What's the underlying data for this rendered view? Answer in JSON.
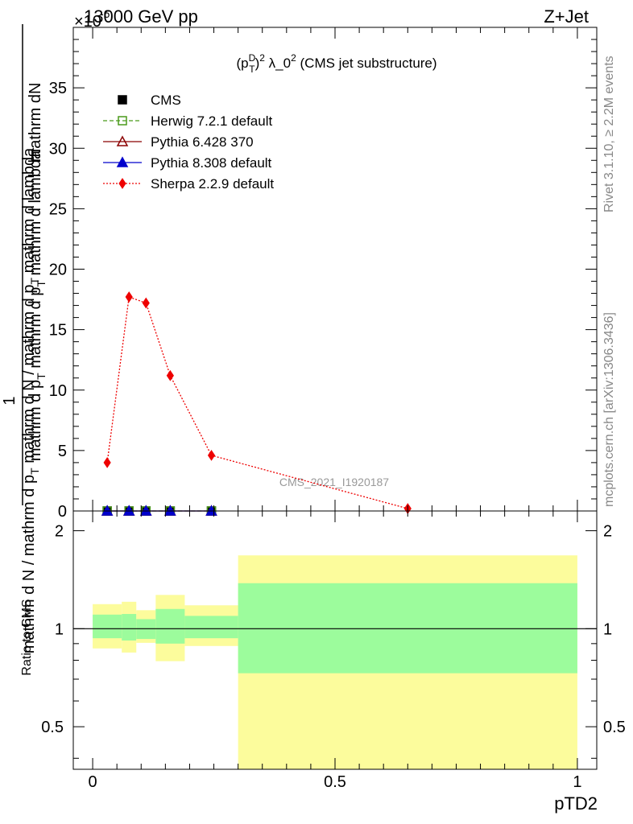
{
  "header": {
    "left": "13000 GeV pp",
    "right": "Z+Jet",
    "exponent_prefix": "×10",
    "exponent_value": "-6"
  },
  "side_labels": {
    "rivet": "Rivet 3.1.10, ≥ 2.2M events",
    "mcplots": "mcplots.cern.ch [arXiv:1306.3436]"
  },
  "plot_title": "(p_T^D)^2 λ_0^2 (CMS jet substructure)",
  "watermark": "CMS_2021_I1920187",
  "chart_data": [
    {
      "type": "line",
      "panel": "main",
      "ylabel": "1 / mathrm d N / mathrm d p_T mathrm d N / mathrm d p_T mathrm d lambda",
      "xlim": [
        -0.04,
        1.04
      ],
      "ylim": [
        0,
        40
      ],
      "yticks_major": [
        0,
        5,
        10,
        15,
        20,
        25,
        30,
        35
      ],
      "yticks_minor_step": 1,
      "legend_position": "top-left",
      "series": [
        {
          "name": "CMS",
          "style": "square-filled",
          "color": "#000000",
          "x": [
            0.03,
            0.075,
            0.11,
            0.16,
            0.245
          ],
          "y": [
            0,
            0,
            0,
            0,
            0
          ]
        },
        {
          "name": "Herwig 7.2.1 default",
          "style": "open-square-dashed",
          "color": "#4a9a1a",
          "x": [
            0.03,
            0.075,
            0.11,
            0.16,
            0.245
          ],
          "y": [
            0,
            0,
            0,
            0,
            0
          ]
        },
        {
          "name": "Pythia 6.428 370",
          "style": "open-triangle-solid",
          "color": "#8b0000",
          "x": [
            0.03,
            0.075,
            0.11,
            0.16,
            0.245
          ],
          "y": [
            0,
            0,
            0,
            0,
            0
          ]
        },
        {
          "name": "Pythia 8.308 default",
          "style": "filled-triangle-solid",
          "color": "#0000cc",
          "x": [
            0.03,
            0.075,
            0.11,
            0.16,
            0.245
          ],
          "y": [
            0,
            0,
            0,
            0,
            0
          ]
        },
        {
          "name": "Sherpa 2.2.9 default",
          "style": "filled-diamond-dotted",
          "color": "#ee0000",
          "x": [
            0.03,
            0.075,
            0.11,
            0.16,
            0.245,
            0.65
          ],
          "y": [
            4.0,
            17.7,
            17.2,
            11.2,
            4.6,
            0.2
          ]
        }
      ]
    },
    {
      "type": "area",
      "panel": "ratio",
      "ylabel": "Ratio to CMS",
      "xlabel": "pTD2",
      "xlim": [
        -0.04,
        1.04
      ],
      "ylim": [
        0.37,
        2.3
      ],
      "log_y": true,
      "yticks_major": [
        0.5,
        1,
        2
      ],
      "xticks_major": [
        0,
        0.5,
        1
      ],
      "reference_line": 1,
      "bins": [
        {
          "x0": 0.0,
          "x1": 0.06,
          "inner": [
            0.935,
            1.105
          ],
          "outer": [
            0.87,
            1.19
          ]
        },
        {
          "x0": 0.06,
          "x1": 0.09,
          "inner": [
            0.92,
            1.11
          ],
          "outer": [
            0.845,
            1.21
          ]
        },
        {
          "x0": 0.09,
          "x1": 0.13,
          "inner": [
            0.93,
            1.07
          ],
          "outer": [
            0.905,
            1.14
          ]
        },
        {
          "x0": 0.13,
          "x1": 0.19,
          "inner": [
            0.9,
            1.15
          ],
          "outer": [
            0.795,
            1.27
          ]
        },
        {
          "x0": 0.19,
          "x1": 0.3,
          "inner": [
            0.935,
            1.095
          ],
          "outer": [
            0.885,
            1.18
          ]
        },
        {
          "x0": 0.3,
          "x1": 1.0,
          "inner": [
            0.73,
            1.38
          ],
          "outer": [
            0.37,
            1.68
          ]
        }
      ],
      "colors": {
        "inner": "#9cfc9c",
        "outer": "#fcfc9c"
      }
    }
  ]
}
